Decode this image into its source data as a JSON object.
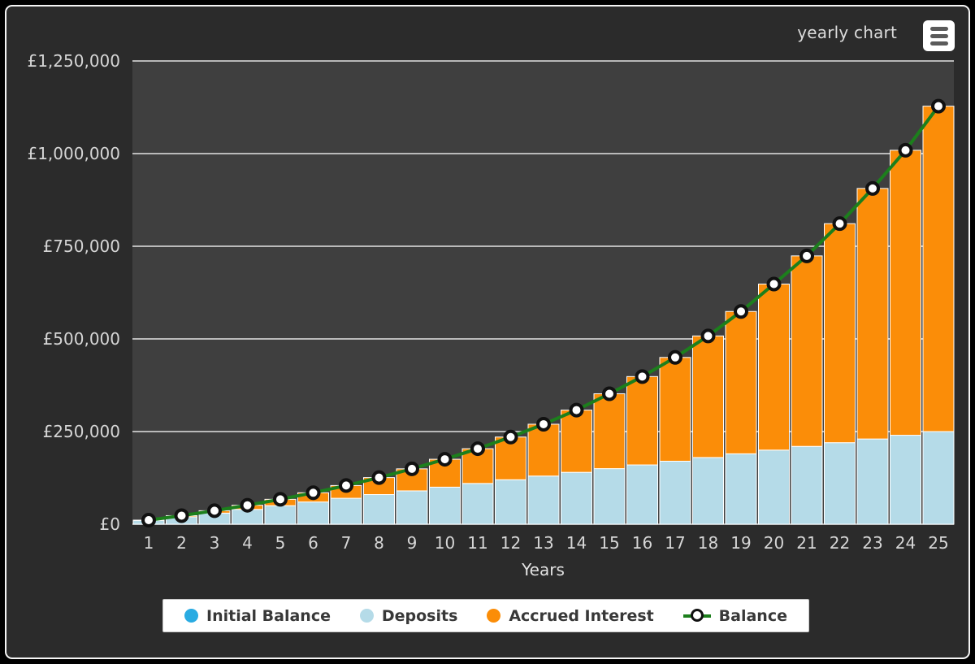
{
  "header": {
    "title": "yearly chart"
  },
  "menu": {
    "icon": "hamburger-icon"
  },
  "legend": {
    "items": [
      {
        "label": "Initial Balance",
        "swatch": "circle",
        "color": "#29abe2"
      },
      {
        "label": "Deposits",
        "swatch": "circle",
        "color": "#b5dbe8"
      },
      {
        "label": "Accrued Interest",
        "swatch": "circle",
        "color": "#fb8d08"
      },
      {
        "label": "Balance",
        "swatch": "line-marker",
        "color": "#1c7f1c"
      }
    ]
  },
  "chart_data": {
    "type": "bar",
    "stacked": true,
    "title": "yearly chart",
    "xlabel": "Years",
    "ylabel": "",
    "ylim": [
      0,
      1250000
    ],
    "y_ticks": [
      0,
      250000,
      500000,
      750000,
      1000000,
      1250000
    ],
    "y_tick_labels": [
      "£0",
      "£250,000",
      "£500,000",
      "£750,000",
      "£1,000,000",
      "£1,250,000"
    ],
    "grid": true,
    "legend_position": "bottom",
    "categories": [
      "1",
      "2",
      "3",
      "4",
      "5",
      "6",
      "7",
      "8",
      "9",
      "10",
      "11",
      "12",
      "13",
      "14",
      "15",
      "16",
      "17",
      "18",
      "19",
      "20",
      "21",
      "22",
      "23",
      "24",
      "25"
    ],
    "series": [
      {
        "name": "Initial Balance",
        "color": "#29abe2",
        "values": [
          0,
          0,
          0,
          0,
          0,
          0,
          0,
          0,
          0,
          0,
          0,
          0,
          0,
          0,
          0,
          0,
          0,
          0,
          0,
          0,
          0,
          0,
          0,
          0,
          0
        ]
      },
      {
        "name": "Deposits",
        "color": "#b5dbe8",
        "values": [
          10000,
          20000,
          30000,
          40000,
          50000,
          60000,
          70000,
          80000,
          90000,
          100000,
          110000,
          120000,
          130000,
          140000,
          150000,
          160000,
          170000,
          180000,
          190000,
          200000,
          210000,
          220000,
          230000,
          240000,
          250000
        ]
      },
      {
        "name": "Accrued Interest",
        "color": "#fb8d08",
        "values": [
          1000,
          3100,
          6400,
          11100,
          17200,
          24900,
          34400,
          45800,
          59400,
          75300,
          93800,
          115200,
          139800,
          167900,
          202000,
          238400,
          280000,
          328000,
          384000,
          448000,
          514000,
          591000,
          676000,
          769000,
          878000
        ]
      }
    ],
    "line_series": {
      "name": "Balance",
      "color": "#1c7f1c",
      "marker": "white-circle-black-ring",
      "values": [
        11000,
        23100,
        36400,
        51100,
        67200,
        84900,
        104400,
        125800,
        149400,
        175300,
        203800,
        235200,
        269800,
        307900,
        352000,
        398400,
        450000,
        508000,
        574000,
        648000,
        724000,
        811000,
        906000,
        1009000,
        1128000
      ]
    },
    "colors": {
      "page_bg": "#2b2b2b",
      "plot_bg": "#3f3f3f",
      "gridline": "#e3e3e3",
      "axis_text": "#d6d6d6",
      "bar_outline": "#ffffff",
      "frame_border": "#f5f5f5"
    }
  }
}
